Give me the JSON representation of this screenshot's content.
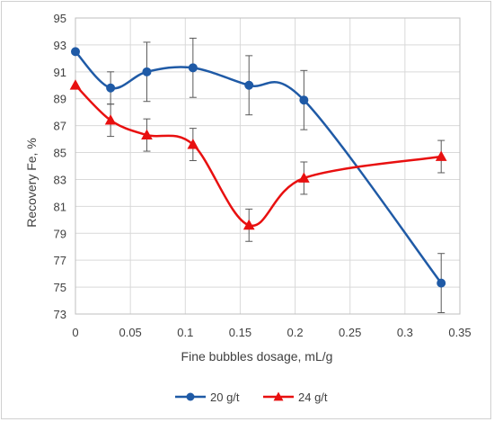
{
  "chart_data": {
    "type": "line",
    "title": "",
    "xlabel": "Fine bubbles dosage, mL/g",
    "ylabel": "Recovery Fe, %",
    "xlim": [
      0,
      0.35
    ],
    "ylim": [
      73,
      95
    ],
    "xticks": [
      0,
      0.05,
      0.1,
      0.15,
      0.2,
      0.25,
      0.3,
      0.35
    ],
    "xtick_labels": [
      "0",
      "0.05",
      "0.1",
      "0.15",
      "0.2",
      "0.25",
      "0.3",
      "0.35"
    ],
    "yticks": [
      73,
      75,
      77,
      79,
      81,
      83,
      85,
      87,
      89,
      91,
      93,
      95
    ],
    "ytick_labels": [
      "73",
      "75",
      "77",
      "79",
      "81",
      "83",
      "85",
      "87",
      "89",
      "91",
      "93",
      "95"
    ],
    "grid": true,
    "legend_position": "bottom",
    "series": [
      {
        "name": "20 g/t",
        "color": "#1F5AA6",
        "marker": "circle",
        "x": [
          0,
          0.032,
          0.065,
          0.107,
          0.158,
          0.208,
          0.333
        ],
        "y": [
          92.5,
          89.8,
          91.0,
          91.3,
          90.0,
          88.9,
          75.3
        ],
        "error": [
          0,
          1.2,
          2.2,
          2.2,
          2.2,
          2.2,
          2.2
        ]
      },
      {
        "name": "24 g/t",
        "color": "#E81010",
        "marker": "triangle",
        "x": [
          0,
          0.032,
          0.065,
          0.107,
          0.158,
          0.208,
          0.333
        ],
        "y": [
          90.0,
          87.4,
          86.3,
          85.6,
          79.6,
          83.1,
          84.7
        ],
        "error": [
          0,
          1.2,
          1.2,
          1.2,
          1.2,
          1.2,
          1.2
        ]
      }
    ]
  }
}
